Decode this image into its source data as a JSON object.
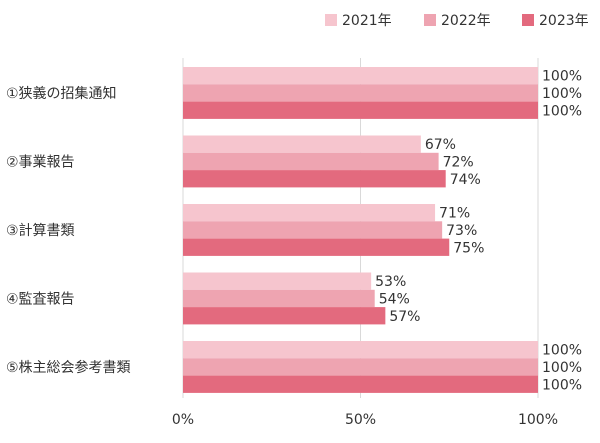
{
  "chart_data": {
    "type": "bar",
    "orientation": "horizontal",
    "categories": [
      "①狭義の招集通知",
      "②事業報告",
      "③計算書類",
      "④監査報告",
      "⑤株主総会参考書類"
    ],
    "series": [
      {
        "name": "2021年",
        "color": "#f6c5ce",
        "values": [
          100,
          67,
          71,
          53,
          100
        ]
      },
      {
        "name": "2022年",
        "color": "#eea4b1",
        "values": [
          100,
          72,
          73,
          54,
          100
        ]
      },
      {
        "name": "2023年",
        "color": "#e36a7e",
        "values": [
          100,
          74,
          75,
          57,
          100
        ]
      }
    ],
    "value_suffix": "%",
    "xlim": [
      0,
      100
    ],
    "x_ticks": [
      0,
      50,
      100
    ],
    "x_tick_labels": [
      "0%",
      "50%",
      "100%"
    ],
    "legend_position": "top-right",
    "grid": "vertical"
  }
}
